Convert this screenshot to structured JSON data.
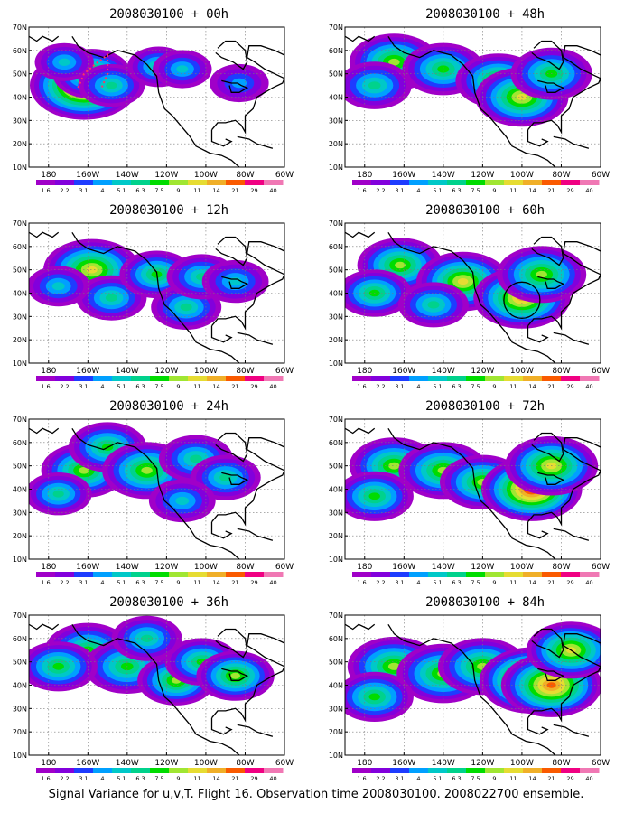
{
  "chart_data": [
    {
      "type": "heatmap",
      "title": "2008030100 + 00h",
      "hotspots": [
        [
          -162,
          45,
          1.0,
          1.0
        ],
        [
          -158,
          50,
          0.6,
          0.55
        ],
        [
          -148,
          45,
          0.45,
          0.35
        ],
        [
          -124,
          53,
          0.4,
          0.35
        ],
        [
          -112,
          52,
          0.35,
          0.25
        ],
        [
          -83,
          46,
          0.35,
          0.2
        ],
        [
          -172,
          55,
          0.35,
          0.25
        ]
      ],
      "markers": [
        "red-dots"
      ]
    },
    {
      "type": "heatmap",
      "title": "2008030100 + 12h",
      "hotspots": [
        [
          -158,
          50,
          0.85,
          0.7
        ],
        [
          -148,
          38,
          0.5,
          0.4
        ],
        [
          -125,
          48,
          0.55,
          0.45
        ],
        [
          -110,
          34,
          0.5,
          0.35
        ],
        [
          -102,
          47,
          0.5,
          0.4
        ],
        [
          -85,
          45,
          0.45,
          0.3
        ],
        [
          -175,
          43,
          0.4,
          0.3
        ]
      ]
    },
    {
      "type": "heatmap",
      "title": "2008030100 + 24h",
      "hotspots": [
        [
          -162,
          48,
          0.7,
          0.6
        ],
        [
          -150,
          58,
          0.6,
          0.45
        ],
        [
          -130,
          48,
          0.75,
          0.6
        ],
        [
          -105,
          53,
          0.55,
          0.4
        ],
        [
          -90,
          45,
          0.5,
          0.35
        ],
        [
          -175,
          38,
          0.45,
          0.35
        ],
        [
          -112,
          35,
          0.45,
          0.3
        ]
      ]
    },
    {
      "type": "heatmap",
      "title": "2008030100 + 36h",
      "hotspots": [
        [
          -160,
          55,
          0.7,
          0.5
        ],
        [
          -140,
          48,
          0.7,
          0.5
        ],
        [
          -115,
          42,
          0.6,
          0.6
        ],
        [
          -102,
          50,
          0.55,
          0.5
        ],
        [
          -85,
          44,
          0.6,
          0.6
        ],
        [
          -175,
          48,
          0.6,
          0.45
        ],
        [
          -130,
          60,
          0.5,
          0.4
        ]
      ]
    },
    {
      "type": "heatmap",
      "title": "2008030100 + 48h",
      "hotspots": [
        [
          -165,
          55,
          0.75,
          0.6
        ],
        [
          -140,
          52,
          0.65,
          0.5
        ],
        [
          -112,
          47,
          0.7,
          0.55
        ],
        [
          -100,
          40,
          0.8,
          0.7
        ],
        [
          -85,
          50,
          0.65,
          0.45
        ],
        [
          -175,
          45,
          0.55,
          0.4
        ]
      ]
    },
    {
      "type": "heatmap",
      "title": "2008030100 + 60h",
      "hotspots": [
        [
          -162,
          52,
          0.7,
          0.55
        ],
        [
          -130,
          45,
          0.8,
          0.7
        ],
        [
          -100,
          38,
          0.85,
          0.8
        ],
        [
          -90,
          48,
          0.75,
          0.55
        ],
        [
          -175,
          40,
          0.55,
          0.45
        ],
        [
          -145,
          35,
          0.5,
          0.4
        ]
      ],
      "markers": [
        "circle"
      ]
    },
    {
      "type": "heatmap",
      "title": "2008030100 + 72h",
      "hotspots": [
        [
          -165,
          50,
          0.75,
          0.6
        ],
        [
          -140,
          48,
          0.75,
          0.55
        ],
        [
          -120,
          43,
          0.7,
          0.55
        ],
        [
          -95,
          40,
          0.9,
          0.95
        ],
        [
          -85,
          50,
          0.8,
          0.7
        ],
        [
          -175,
          37,
          0.6,
          0.45
        ]
      ]
    },
    {
      "type": "heatmap",
      "title": "2008030100 + 84h",
      "hotspots": [
        [
          -165,
          48,
          0.8,
          0.6
        ],
        [
          -140,
          45,
          0.8,
          0.55
        ],
        [
          -120,
          48,
          0.75,
          0.55
        ],
        [
          -95,
          42,
          0.95,
          0.95
        ],
        [
          -85,
          40,
          0.9,
          0.9
        ],
        [
          -75,
          55,
          0.75,
          0.7
        ],
        [
          -175,
          35,
          0.6,
          0.45
        ]
      ]
    }
  ],
  "axes": {
    "xticks": [
      "180",
      "160W",
      "140W",
      "120W",
      "100W",
      "80W",
      "60W"
    ],
    "yticks": [
      "10N",
      "20N",
      "30N",
      "40N",
      "50N",
      "60N",
      "70N"
    ],
    "lon_range": [
      -190,
      -60
    ],
    "lat_range": [
      10,
      70
    ]
  },
  "colorbar": {
    "labels": [
      "1.6",
      "2.2",
      "3.1",
      "4",
      "5.1",
      "6.3",
      "7.5",
      "9",
      "11",
      "14",
      "21",
      "29",
      "40"
    ],
    "colors": [
      "#a000c8",
      "#8200dc",
      "#1e3cff",
      "#00a0ff",
      "#00c8c8",
      "#00d28c",
      "#00dc00",
      "#a0e632",
      "#e6dc32",
      "#f0af28",
      "#fa5a00",
      "#f00082",
      "#f078b4"
    ]
  },
  "caption": "Signal Variance for u,v,T. Flight 16. Observation time 2008030100. 2008022700 ensemble."
}
